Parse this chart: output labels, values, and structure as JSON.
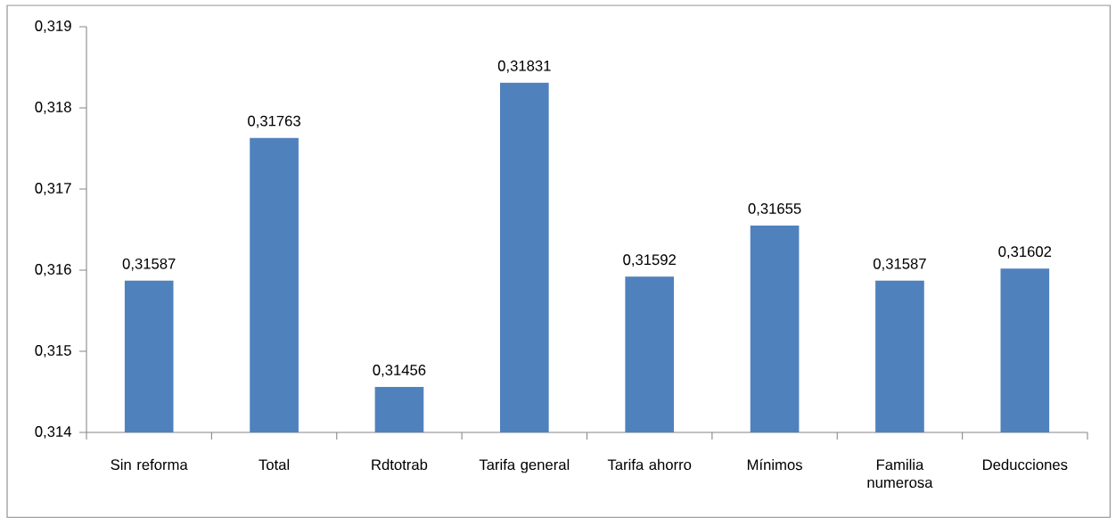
{
  "chart_data": {
    "type": "bar",
    "categories": [
      "Sin reforma",
      "Total",
      "Rdtotrab",
      "Tarifa general",
      "Tarifa ahorro",
      "Mínimos",
      "Familia numerosa",
      "Deducciones"
    ],
    "values": [
      0.31587,
      0.31763,
      0.31456,
      0.31831,
      0.31592,
      0.31655,
      0.31587,
      0.31602
    ],
    "value_labels": [
      "0,31587",
      "0,31763",
      "0,31456",
      "0,31831",
      "0,31592",
      "0,31655",
      "0,31587",
      "0,31602"
    ],
    "color": "#4f81bd",
    "ylim": [
      0.314,
      0.319
    ],
    "yticks": [
      {
        "value": 0.314,
        "label": "0,314"
      },
      {
        "value": 0.315,
        "label": "0,315"
      },
      {
        "value": 0.316,
        "label": "0,316"
      },
      {
        "value": 0.317,
        "label": "0,317"
      },
      {
        "value": 0.318,
        "label": "0,318"
      },
      {
        "value": 0.319,
        "label": "0,319"
      }
    ],
    "grid": false
  }
}
